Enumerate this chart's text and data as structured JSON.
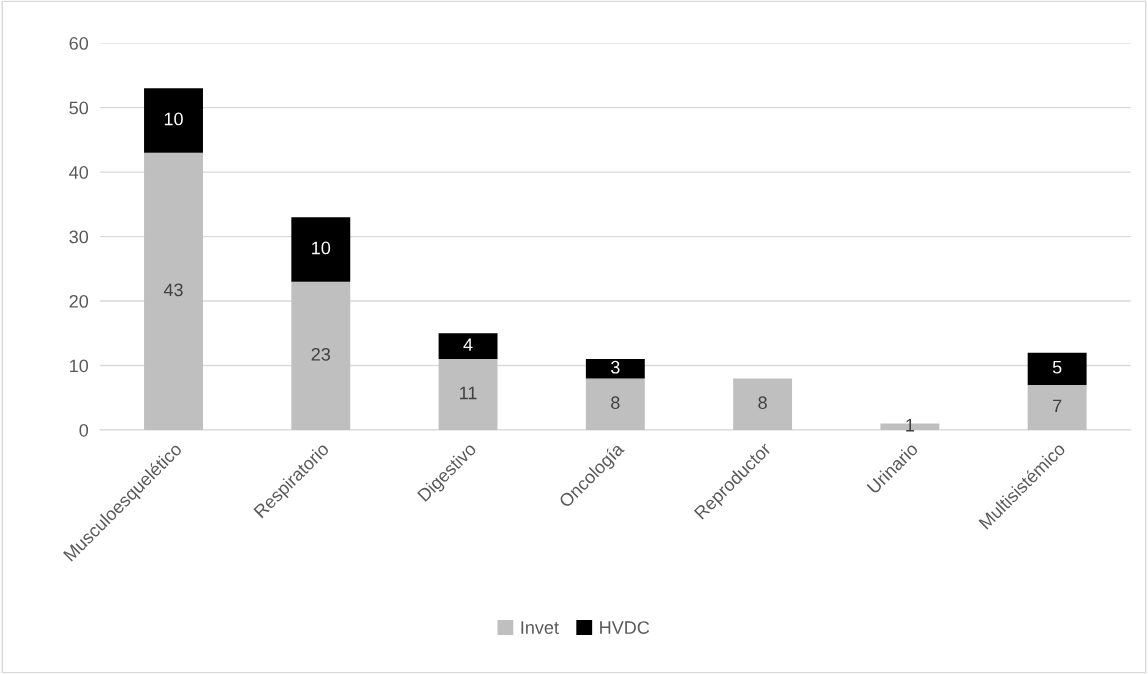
{
  "chart_data": {
    "type": "bar",
    "stacked": true,
    "categories": [
      "Musculoesquelético",
      "Respiratorio",
      "Digestivo",
      "Oncología",
      "Reproductor",
      "Urinario",
      "Multisistémico"
    ],
    "series": [
      {
        "name": "Invet",
        "color": "#bfbfbf",
        "values": [
          43,
          23,
          11,
          8,
          8,
          1,
          7
        ]
      },
      {
        "name": "HVDC",
        "color": "#000000",
        "values": [
          10,
          10,
          4,
          3,
          null,
          null,
          5
        ]
      }
    ],
    "ylim": [
      0,
      60
    ],
    "yticks": [
      0,
      10,
      20,
      30,
      40,
      50,
      60
    ],
    "grid": "y",
    "legend": "bottom",
    "data_labels": true
  }
}
